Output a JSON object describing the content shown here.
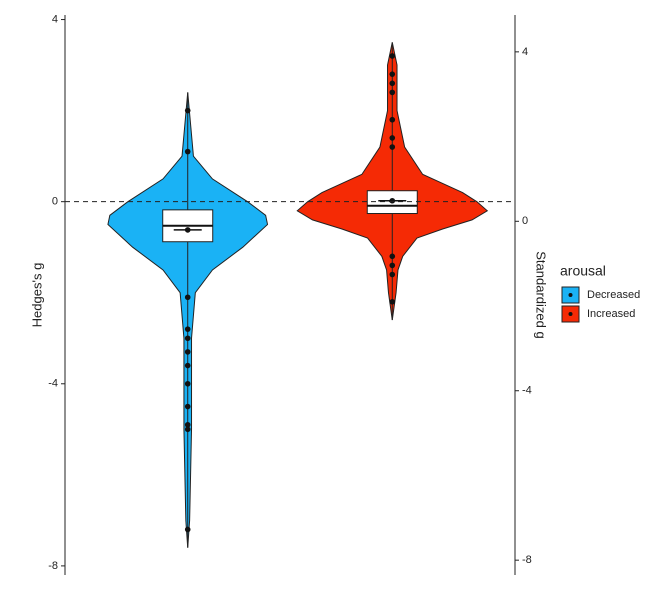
{
  "chart_data": {
    "type": "violin",
    "y_label": "Hedges's g",
    "y2_label": "Standardized g",
    "legend_title": "arousal",
    "ylim": [
      -8.2,
      4.1
    ],
    "yticks": [
      -8,
      -4,
      0,
      4
    ],
    "y2lim": [
      -8.35,
      4.87
    ],
    "y2ticks": [
      -8,
      -4,
      0,
      4
    ],
    "reference_line": 0,
    "series": [
      {
        "name": "Decreased",
        "color": "#1ab2f5",
        "violin": {
          "y": [
            2.4,
            1.0,
            0.5,
            0,
            -0.3,
            -0.5,
            -1.0,
            -1.5,
            -2.0,
            -3.0,
            -5.0,
            -7.0,
            -7.6
          ],
          "density": [
            0,
            0.06,
            0.26,
            0.63,
            0.82,
            0.84,
            0.58,
            0.26,
            0.08,
            0.04,
            0.04,
            0.02,
            0
          ]
        },
        "box": {
          "q1": -0.88,
          "median": -0.53,
          "q3": -0.18
        },
        "mean": -0.62,
        "points": [
          2.0,
          1.1,
          -2.1,
          -2.8,
          -3.0,
          -3.3,
          -3.6,
          -4.0,
          -4.5,
          -4.9,
          -5.0,
          -7.2
        ]
      },
      {
        "name": "Increased",
        "color": "#f52a05",
        "violin": {
          "y": [
            3.5,
            3.0,
            2.0,
            1.2,
            0.6,
            0.4,
            0.2,
            0,
            -0.2,
            -0.4,
            -0.6,
            -0.8,
            -1.2,
            -1.5,
            -2.0,
            -2.6
          ],
          "density": [
            0,
            0.05,
            0.05,
            0.13,
            0.32,
            0.53,
            0.74,
            0.89,
            1.0,
            0.84,
            0.53,
            0.26,
            0.11,
            0.06,
            0.04,
            0
          ]
        },
        "box": {
          "q1": -0.26,
          "median": -0.09,
          "q3": 0.24
        },
        "mean": 0.02,
        "points": [
          3.2,
          2.8,
          2.6,
          2.4,
          1.8,
          1.4,
          1.2,
          -1.2,
          -1.4,
          -1.6,
          -2.2
        ]
      }
    ]
  }
}
